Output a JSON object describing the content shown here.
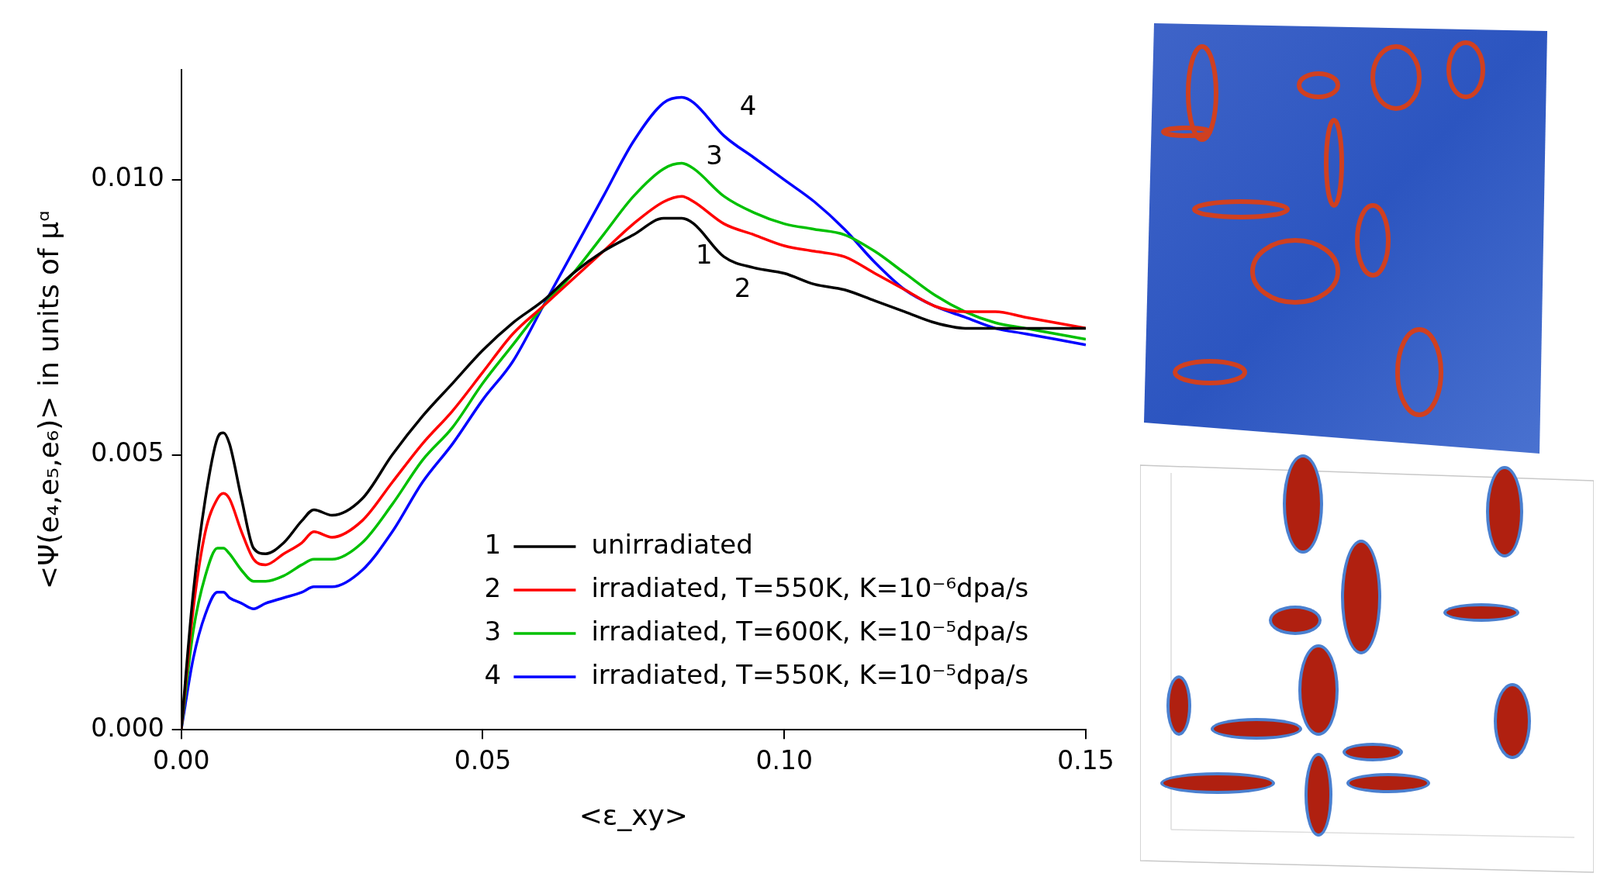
{
  "chart_data": {
    "type": "line",
    "x_title": "<ε_xy>",
    "y_title": "<Ψ(e₄,e₅,e₆)> in units of μᵅ",
    "xlim": [
      0,
      0.15
    ],
    "xticks": [
      {
        "value": 0,
        "label": "0.00"
      },
      {
        "value": 0.05,
        "label": "0.05"
      },
      {
        "value": 0.1,
        "label": "0.10"
      },
      {
        "value": 0.15,
        "label": "0.15"
      }
    ],
    "ylim": [
      0,
      0.012
    ],
    "yticks": [
      {
        "value": 0,
        "label": "0.000"
      },
      {
        "value": 0.005,
        "label": "0.005"
      },
      {
        "value": 0.01,
        "label": "0.010"
      }
    ],
    "grid": false,
    "legend": "lower right",
    "x": [
      0,
      0.002,
      0.004,
      0.006,
      0.007,
      0.008,
      0.01,
      0.012,
      0.014,
      0.017,
      0.02,
      0.022,
      0.025,
      0.03,
      0.035,
      0.04,
      0.045,
      0.05,
      0.055,
      0.06,
      0.065,
      0.07,
      0.075,
      0.08,
      0.083,
      0.085,
      0.09,
      0.095,
      0.1,
      0.105,
      0.11,
      0.115,
      0.12,
      0.125,
      0.13,
      0.135,
      0.14,
      0.145,
      0.15
    ],
    "series": [
      {
        "label": "1",
        "name": "unirradiated",
        "color": "#000000",
        "values": [
          0,
          0.0025,
          0.0042,
          0.0053,
          0.0054,
          0.0052,
          0.0042,
          0.0033,
          0.0032,
          0.0034,
          0.0038,
          0.004,
          0.0039,
          0.0042,
          0.005,
          0.0057,
          0.0063,
          0.0069,
          0.0074,
          0.0078,
          0.0083,
          0.0087,
          0.009,
          0.0093,
          0.0093,
          0.0092,
          0.0086,
          0.0084,
          0.0083,
          0.0081,
          0.008,
          0.0078,
          0.0076,
          0.0074,
          0.0073,
          0.0073,
          0.0073,
          0.0073,
          0.0073
        ]
      },
      {
        "label": "2",
        "name": "irradiated, T=550K, K=10⁻⁶dpa/s",
        "color": "#ff0000",
        "values": [
          0,
          0.0022,
          0.0036,
          0.0042,
          0.0043,
          0.0042,
          0.0036,
          0.0031,
          0.003,
          0.0032,
          0.0034,
          0.0036,
          0.0035,
          0.0038,
          0.0045,
          0.0052,
          0.0058,
          0.0065,
          0.0072,
          0.0077,
          0.0082,
          0.0087,
          0.0092,
          0.0096,
          0.0097,
          0.0096,
          0.0092,
          0.009,
          0.0088,
          0.0087,
          0.0086,
          0.0083,
          0.008,
          0.0077,
          0.0076,
          0.0076,
          0.0075,
          0.0074,
          0.0073
        ]
      },
      {
        "label": "3",
        "name": "irradiated, T=600K, K=10⁻⁵dpa/s",
        "color": "#00c000",
        "values": [
          0,
          0.0018,
          0.0028,
          0.0033,
          0.0033,
          0.0032,
          0.0029,
          0.0027,
          0.0027,
          0.0028,
          0.003,
          0.0031,
          0.0031,
          0.0034,
          0.0041,
          0.0049,
          0.0055,
          0.0063,
          0.007,
          0.0077,
          0.0083,
          0.009,
          0.0097,
          0.0102,
          0.0103,
          0.0102,
          0.0097,
          0.0094,
          0.0092,
          0.0091,
          0.009,
          0.0087,
          0.0083,
          0.0079,
          0.0076,
          0.0074,
          0.0073,
          0.0072,
          0.0071
        ]
      },
      {
        "label": "4",
        "name": "irradiated, T=550K, K=10⁻⁵dpa/s",
        "color": "#0000ff",
        "values": [
          0,
          0.0013,
          0.0021,
          0.0025,
          0.0025,
          0.0024,
          0.0023,
          0.0022,
          0.0023,
          0.0024,
          0.0025,
          0.0026,
          0.0026,
          0.0029,
          0.0036,
          0.0045,
          0.0052,
          0.006,
          0.0067,
          0.0077,
          0.0087,
          0.0097,
          0.0107,
          0.0114,
          0.0115,
          0.0114,
          0.0108,
          0.0104,
          0.01,
          0.0096,
          0.0091,
          0.0085,
          0.008,
          0.0077,
          0.0075,
          0.0073,
          0.0072,
          0.0071,
          0.007
        ]
      }
    ],
    "annotations": [
      {
        "text": "4",
        "x": 0.094,
        "y": 0.0113
      },
      {
        "text": "3",
        "x": 0.0884,
        "y": 0.0104
      },
      {
        "text": "1",
        "x": 0.0867,
        "y": 0.0086
      },
      {
        "text": "2",
        "x": 0.0931,
        "y": 0.008
      }
    ]
  }
}
